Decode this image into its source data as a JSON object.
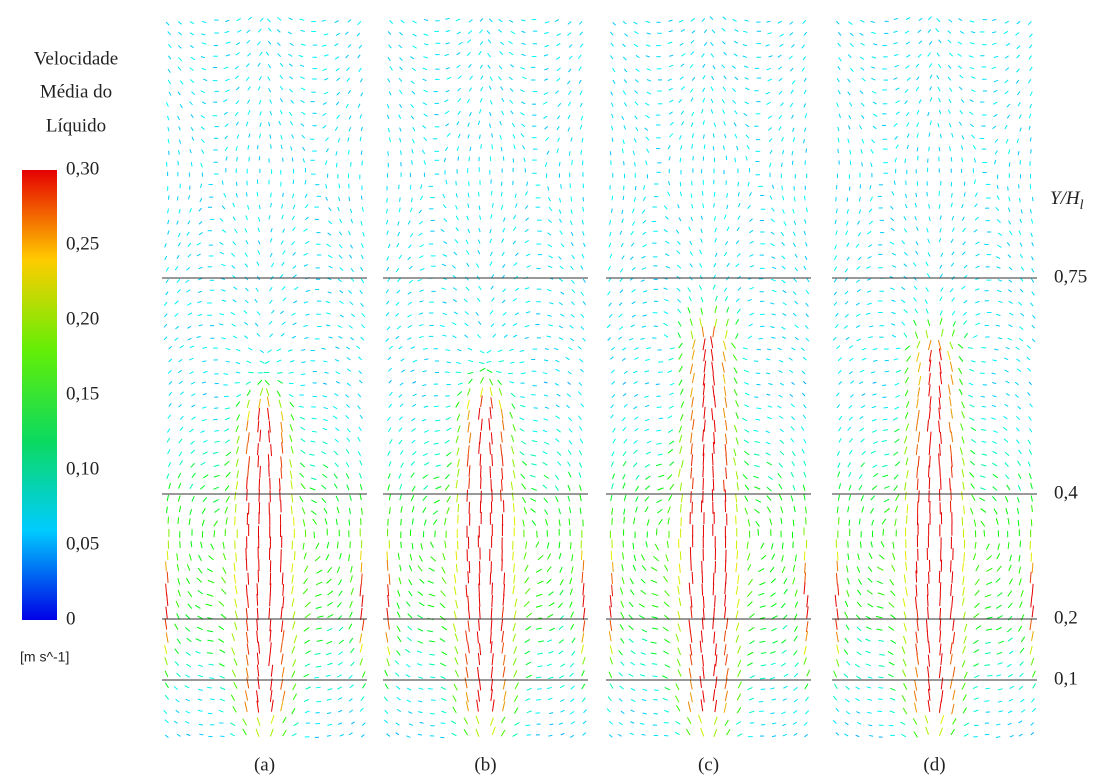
{
  "legend": {
    "title": [
      "Velocidade",
      "Média do",
      "Líquido"
    ],
    "ticks": [
      "0,30",
      "0,25",
      "0,20",
      "0,15",
      "0,10",
      "0,05",
      "0"
    ],
    "unit": "[m s^-1]"
  },
  "panels": [
    "(a)",
    "(b)",
    "(c)",
    "(d)"
  ],
  "axis_label": "Y/H",
  "axis_label_sub": "l",
  "levels": [
    "0,75",
    "0,4",
    "0,2",
    "0,1"
  ]
}
